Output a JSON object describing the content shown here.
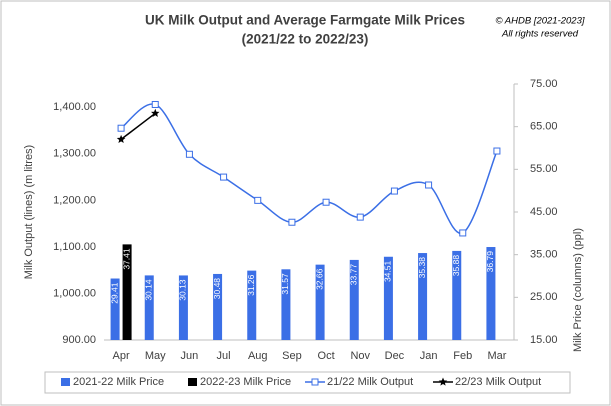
{
  "chart_data": {
    "type": "combo",
    "title": "UK Milk Output and Average Farmgate Milk Prices",
    "subtitle": "(2021/22 to 2022/23)",
    "copyright": [
      "© AHDB [2021-2023]",
      "All rights reserved"
    ],
    "ylabel": "Milk Output (lines) (m litres)",
    "y2label": "Milk Price (columns) (ppl)",
    "categories": [
      "Apr",
      "May",
      "Jun",
      "Jul",
      "Aug",
      "Sep",
      "Oct",
      "Nov",
      "Dec",
      "Jan",
      "Feb",
      "Mar"
    ],
    "ylim": [
      900,
      1450
    ],
    "yticks": [
      {
        "value": 900,
        "label": "900.00"
      },
      {
        "value": 1000,
        "label": "1,000.00"
      },
      {
        "value": 1100,
        "label": "1,100.00"
      },
      {
        "value": 1200,
        "label": "1,200.00"
      },
      {
        "value": 1300,
        "label": "1,300.00"
      },
      {
        "value": 1400,
        "label": "1,400.00"
      }
    ],
    "y2lim": [
      15,
      75
    ],
    "y2ticks": [
      {
        "value": 15,
        "label": "15.00"
      },
      {
        "value": 25,
        "label": "25.00"
      },
      {
        "value": 35,
        "label": "35.00"
      },
      {
        "value": 45,
        "label": "45.00"
      },
      {
        "value": 55,
        "label": "55.00"
      },
      {
        "value": 65,
        "label": "65.00"
      },
      {
        "value": 75,
        "label": "75.00"
      }
    ],
    "legend": "bottom",
    "series": [
      {
        "name": "2021-22 Milk Price",
        "type": "bar",
        "axis": "y2",
        "color": "#3b6fe6",
        "values": [
          29.41,
          30.14,
          30.13,
          30.48,
          31.26,
          31.57,
          32.66,
          33.77,
          34.51,
          35.38,
          35.88,
          36.79
        ]
      },
      {
        "name": "2022-23 Milk Price",
        "type": "bar",
        "axis": "y2",
        "color": "#000000",
        "values": [
          37.41,
          null,
          null,
          null,
          null,
          null,
          null,
          null,
          null,
          null,
          null,
          null
        ]
      },
      {
        "name": "21/22 Milk Output",
        "type": "line",
        "color": "#3b6fe6",
        "marker": "square",
        "values": [
          1355,
          1406,
          1299,
          1250,
          1200,
          1153,
          1196,
          1164,
          1220,
          1233,
          1130,
          1306
        ]
      },
      {
        "name": "22/23 Milk Output",
        "type": "line",
        "color": "#000000",
        "marker": "star",
        "values": [
          1331,
          1387,
          null,
          null,
          null,
          null,
          null,
          null,
          null,
          null,
          null,
          null
        ]
      }
    ]
  }
}
